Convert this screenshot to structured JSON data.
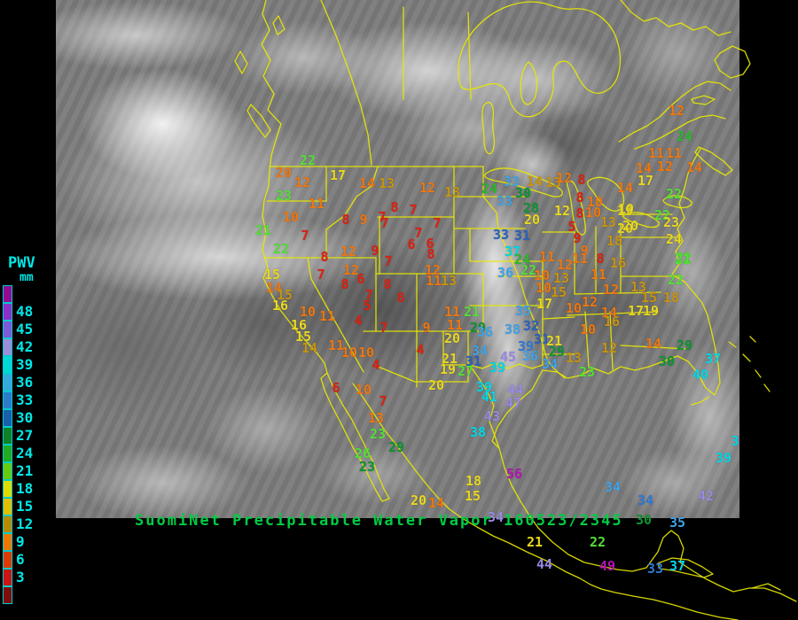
{
  "legend": {
    "title": "PWV",
    "unit": "mm",
    "text_color": "#00e8e8",
    "entries": [
      {
        "label": "",
        "color": "#930a93"
      },
      {
        "label": "48",
        "color": "#8a2fc9"
      },
      {
        "label": "45",
        "color": "#7d5ad8"
      },
      {
        "label": "42",
        "color": "#9a8fd8"
      },
      {
        "label": "39",
        "color": "#00d8d8"
      },
      {
        "label": "36",
        "color": "#35a8e0"
      },
      {
        "label": "33",
        "color": "#2b7ccc"
      },
      {
        "label": "30",
        "color": "#1a5fae"
      },
      {
        "label": "27",
        "color": "#0e8028"
      },
      {
        "label": "24",
        "color": "#22aa22"
      },
      {
        "label": "21",
        "color": "#64cc11"
      },
      {
        "label": "18",
        "color": "#dddd00"
      },
      {
        "label": "15",
        "color": "#e0c000"
      },
      {
        "label": "12",
        "color": "#b88a00"
      },
      {
        "label": "9",
        "color": "#ee7700"
      },
      {
        "label": "6",
        "color": "#dd3c00"
      },
      {
        "label": "3",
        "color": "#cc1414"
      },
      {
        "label": "",
        "color": "#7d0d0d"
      }
    ]
  },
  "caption": {
    "text": "SuomiNet Precipitable Water Vapor 160523/2345",
    "color": "#00cc44"
  },
  "map": {
    "line_color": "#e8e800"
  },
  "palette": {
    "red": "#dd2211",
    "orange": "#ee7711",
    "gold": "#c89410",
    "yellow": "#e8d820",
    "bgreen": "#55e038",
    "green": "#2db82d",
    "dgreen": "#0f9433",
    "lblue": "#3fa4e8",
    "blue": "#2f7ad4",
    "dblue": "#2b62c0",
    "cyan": "#00d8e8",
    "lav": "#9b8ae4",
    "magenta": "#b414b4"
  },
  "stations": [
    [
      "22",
      347,
      182,
      "bgreen"
    ],
    [
      "20",
      320,
      196,
      "orange"
    ],
    [
      "12",
      341,
      207,
      "orange"
    ],
    [
      "17",
      381,
      199,
      "yellow"
    ],
    [
      "23",
      320,
      222,
      "bgreen"
    ],
    [
      "14",
      414,
      208,
      "orange"
    ],
    [
      "13",
      436,
      208,
      "gold"
    ],
    [
      "11",
      357,
      231,
      "orange"
    ],
    [
      "10",
      328,
      246,
      "orange"
    ],
    [
      "21",
      297,
      261,
      "bgreen"
    ],
    [
      "7",
      344,
      267,
      "red"
    ],
    [
      "22",
      317,
      282,
      "bgreen"
    ],
    [
      "8",
      390,
      249,
      "red"
    ],
    [
      "9",
      410,
      249,
      "orange"
    ],
    [
      "7",
      431,
      246,
      "red"
    ],
    [
      "8",
      445,
      235,
      "red"
    ],
    [
      "7",
      466,
      238,
      "red"
    ],
    [
      "7",
      493,
      253,
      "red"
    ],
    [
      "7",
      434,
      253,
      "red"
    ],
    [
      "7",
      472,
      264,
      "red"
    ],
    [
      "6",
      464,
      277,
      "red"
    ],
    [
      "6",
      485,
      276,
      "red"
    ],
    [
      "8",
      486,
      288,
      "red"
    ],
    [
      "7",
      438,
      296,
      "red"
    ],
    [
      "9",
      423,
      284,
      "red"
    ],
    [
      "12",
      393,
      285,
      "orange"
    ],
    [
      "8",
      366,
      291,
      "red"
    ],
    [
      "12",
      396,
      306,
      "orange"
    ],
    [
      "6",
      407,
      316,
      "red"
    ],
    [
      "8",
      389,
      322,
      "red"
    ],
    [
      "7",
      362,
      311,
      "red"
    ],
    [
      "15",
      307,
      311,
      "yellow"
    ],
    [
      "14",
      309,
      326,
      "orange"
    ],
    [
      "15",
      321,
      334,
      "gold"
    ],
    [
      "16",
      316,
      346,
      "yellow"
    ],
    [
      "10",
      347,
      353,
      "orange"
    ],
    [
      "11",
      369,
      358,
      "orange"
    ],
    [
      "4",
      404,
      363,
      "red"
    ],
    [
      "16",
      337,
      368,
      "yellow"
    ],
    [
      "15",
      342,
      381,
      "yellow"
    ],
    [
      "14",
      349,
      394,
      "gold"
    ],
    [
      "11",
      379,
      391,
      "orange"
    ],
    [
      "10",
      394,
      399,
      "orange"
    ],
    [
      "10",
      413,
      399,
      "orange"
    ],
    [
      "4",
      424,
      413,
      "red"
    ],
    [
      "5",
      414,
      346,
      "red"
    ],
    [
      "7",
      416,
      334,
      "red"
    ],
    [
      "8",
      437,
      322,
      "red"
    ],
    [
      "8",
      452,
      337,
      "red"
    ],
    [
      "7",
      433,
      371,
      "red"
    ],
    [
      "9",
      481,
      371,
      "orange"
    ],
    [
      "4",
      474,
      396,
      "red"
    ],
    [
      "12",
      488,
      306,
      "orange"
    ],
    [
      "11",
      489,
      318,
      "orange"
    ],
    [
      "13",
      506,
      318,
      "gold"
    ],
    [
      "12",
      482,
      213,
      "orange"
    ],
    [
      "13",
      510,
      218,
      "gold"
    ],
    [
      "24",
      552,
      214,
      "green"
    ],
    [
      "33",
      577,
      206,
      "lblue"
    ],
    [
      "30",
      590,
      219,
      "dgreen"
    ],
    [
      "33",
      569,
      228,
      "lblue"
    ],
    [
      "28",
      599,
      236,
      "dgreen"
    ],
    [
      "20",
      600,
      249,
      "yellow"
    ],
    [
      "14",
      603,
      206,
      "gold"
    ],
    [
      "13",
      624,
      207,
      "gold"
    ],
    [
      "12",
      636,
      202,
      "orange"
    ],
    [
      "8",
      656,
      204,
      "red"
    ],
    [
      "8",
      654,
      224,
      "red"
    ],
    [
      "10",
      671,
      229,
      "orange"
    ],
    [
      "12",
      634,
      239,
      "yellow"
    ],
    [
      "8",
      654,
      242,
      "red"
    ],
    [
      "10",
      669,
      241,
      "orange"
    ],
    [
      "13",
      686,
      252,
      "gold"
    ],
    [
      "19",
      706,
      237,
      "yellow"
    ],
    [
      "20",
      711,
      256,
      "yellow"
    ],
    [
      "18",
      693,
      273,
      "gold"
    ],
    [
      "5",
      645,
      257,
      "red"
    ],
    [
      "9",
      651,
      270,
      "red"
    ],
    [
      "9",
      659,
      284,
      "orange"
    ],
    [
      "11",
      617,
      291,
      "orange"
    ],
    [
      "11",
      654,
      293,
      "orange"
    ],
    [
      "8",
      677,
      293,
      "red"
    ],
    [
      "16",
      697,
      298,
      "gold"
    ],
    [
      "12",
      637,
      300,
      "orange"
    ],
    [
      "33",
      565,
      266,
      "dblue"
    ],
    [
      "31",
      589,
      267,
      "dblue"
    ],
    [
      "37",
      578,
      285,
      "cyan"
    ],
    [
      "36",
      570,
      309,
      "lblue"
    ],
    [
      "24",
      589,
      294,
      "green"
    ],
    [
      "22",
      596,
      306,
      "bgreen"
    ],
    [
      "10",
      611,
      312,
      "orange"
    ],
    [
      "13",
      633,
      315,
      "gold"
    ],
    [
      "10",
      613,
      326,
      "orange"
    ],
    [
      "15",
      630,
      331,
      "gold"
    ],
    [
      "17",
      614,
      344,
      "yellow"
    ],
    [
      "10",
      647,
      349,
      "orange"
    ],
    [
      "12",
      665,
      342,
      "orange"
    ],
    [
      "10",
      663,
      373,
      "orange"
    ],
    [
      "12",
      763,
      126,
      "orange"
    ],
    [
      "24",
      772,
      155,
      "green"
    ],
    [
      "11",
      740,
      174,
      "orange"
    ],
    [
      "11",
      760,
      174,
      "orange"
    ],
    [
      "14",
      726,
      191,
      "orange"
    ],
    [
      "12",
      750,
      189,
      "orange"
    ],
    [
      "17",
      728,
      205,
      "yellow"
    ],
    [
      "14",
      705,
      213,
      "orange"
    ],
    [
      "14",
      783,
      190,
      "orange"
    ],
    [
      "22",
      760,
      220,
      "bgreen"
    ],
    [
      "19",
      705,
      239,
      "yellow"
    ],
    [
      "20",
      705,
      259,
      "yellow"
    ],
    [
      "22",
      747,
      244,
      "bgreen"
    ],
    [
      "23",
      757,
      252,
      "yellow"
    ],
    [
      "24",
      760,
      271,
      "yellow"
    ],
    [
      "22",
      771,
      292,
      "bgreen"
    ],
    [
      "11",
      675,
      311,
      "orange"
    ],
    [
      "12",
      689,
      328,
      "orange"
    ],
    [
      "13",
      720,
      325,
      "gold"
    ],
    [
      "15",
      732,
      337,
      "gold"
    ],
    [
      "18",
      757,
      337,
      "gold"
    ],
    [
      "22",
      762,
      317,
      "bgreen"
    ],
    [
      "21",
      770,
      294,
      "bgreen"
    ],
    [
      "17",
      717,
      352,
      "yellow"
    ],
    [
      "19",
      734,
      352,
      "yellow"
    ],
    [
      "14",
      687,
      354,
      "orange"
    ],
    [
      "16",
      690,
      364,
      "gold"
    ],
    [
      "14",
      737,
      389,
      "orange"
    ],
    [
      "12",
      687,
      394,
      "gold"
    ],
    [
      "29",
      772,
      391,
      "dgreen"
    ],
    [
      "30",
      752,
      409,
      "dgreen"
    ],
    [
      "37",
      804,
      406,
      "cyan"
    ],
    [
      "40",
      790,
      424,
      "cyan"
    ],
    [
      "13",
      647,
      405,
      "gold"
    ],
    [
      "23",
      662,
      421,
      "bgreen"
    ],
    [
      "34",
      620,
      412,
      "lblue"
    ],
    [
      "11",
      510,
      353,
      "orange"
    ],
    [
      "21",
      532,
      353,
      "bgreen"
    ],
    [
      "11",
      513,
      368,
      "orange"
    ],
    [
      "29",
      539,
      371,
      "dgreen"
    ],
    [
      "20",
      510,
      383,
      "yellow"
    ],
    [
      "36",
      547,
      376,
      "lblue"
    ],
    [
      "38",
      578,
      373,
      "lblue"
    ],
    [
      "32",
      599,
      369,
      "dblue"
    ],
    [
      "31",
      611,
      384,
      "dblue"
    ],
    [
      "35",
      590,
      352,
      "lblue"
    ],
    [
      "39",
      593,
      392,
      "blue"
    ],
    [
      "21",
      507,
      406,
      "yellow"
    ],
    [
      "31",
      534,
      409,
      "dblue"
    ],
    [
      "19",
      505,
      418,
      "yellow"
    ],
    [
      "27",
      525,
      420,
      "bgreen"
    ],
    [
      "34",
      541,
      397,
      "lblue"
    ],
    [
      "45",
      573,
      404,
      "lav"
    ],
    [
      "36",
      598,
      403,
      "lblue"
    ],
    [
      "39",
      561,
      416,
      "cyan"
    ],
    [
      "29",
      628,
      398,
      "dgreen"
    ],
    [
      "21",
      625,
      386,
      "yellow"
    ],
    [
      "20",
      492,
      436,
      "yellow"
    ],
    [
      "39",
      546,
      438,
      "cyan"
    ],
    [
      "41",
      552,
      449,
      "cyan"
    ],
    [
      "44",
      581,
      441,
      "lav"
    ],
    [
      "47",
      579,
      456,
      "lav"
    ],
    [
      "43",
      555,
      471,
      "lav"
    ],
    [
      "38",
      539,
      489,
      "cyan"
    ],
    [
      "6",
      379,
      439,
      "red"
    ],
    [
      "10",
      410,
      441,
      "orange"
    ],
    [
      "7",
      432,
      454,
      "red"
    ],
    [
      "13",
      424,
      473,
      "orange"
    ],
    [
      "23",
      426,
      491,
      "bgreen"
    ],
    [
      "29",
      447,
      506,
      "dgreen"
    ],
    [
      "26",
      409,
      513,
      "bgreen"
    ],
    [
      "23",
      414,
      528,
      "dgreen"
    ],
    [
      "20",
      472,
      566,
      "yellow"
    ],
    [
      "14",
      492,
      569,
      "orange"
    ],
    [
      "18",
      534,
      544,
      "yellow"
    ],
    [
      "15",
      533,
      561,
      "yellow"
    ],
    [
      "56",
      580,
      536,
      "magenta"
    ],
    [
      "34",
      559,
      585,
      "lav"
    ],
    [
      "21",
      603,
      613,
      "yellow"
    ],
    [
      "44",
      614,
      638,
      "lav"
    ],
    [
      "22",
      674,
      613,
      "bgreen"
    ],
    [
      "49",
      685,
      640,
      "magenta"
    ],
    [
      "33",
      739,
      643,
      "blue"
    ],
    [
      "37",
      764,
      640,
      "cyan"
    ],
    [
      "34",
      691,
      551,
      "lblue"
    ],
    [
      "34",
      728,
      566,
      "blue"
    ],
    [
      "30",
      726,
      588,
      "dgreen"
    ],
    [
      "35",
      764,
      591,
      "lblue"
    ],
    [
      "42",
      796,
      561,
      "lav"
    ],
    [
      "39",
      816,
      518,
      "cyan"
    ],
    [
      "3",
      829,
      499,
      "cyan"
    ]
  ]
}
